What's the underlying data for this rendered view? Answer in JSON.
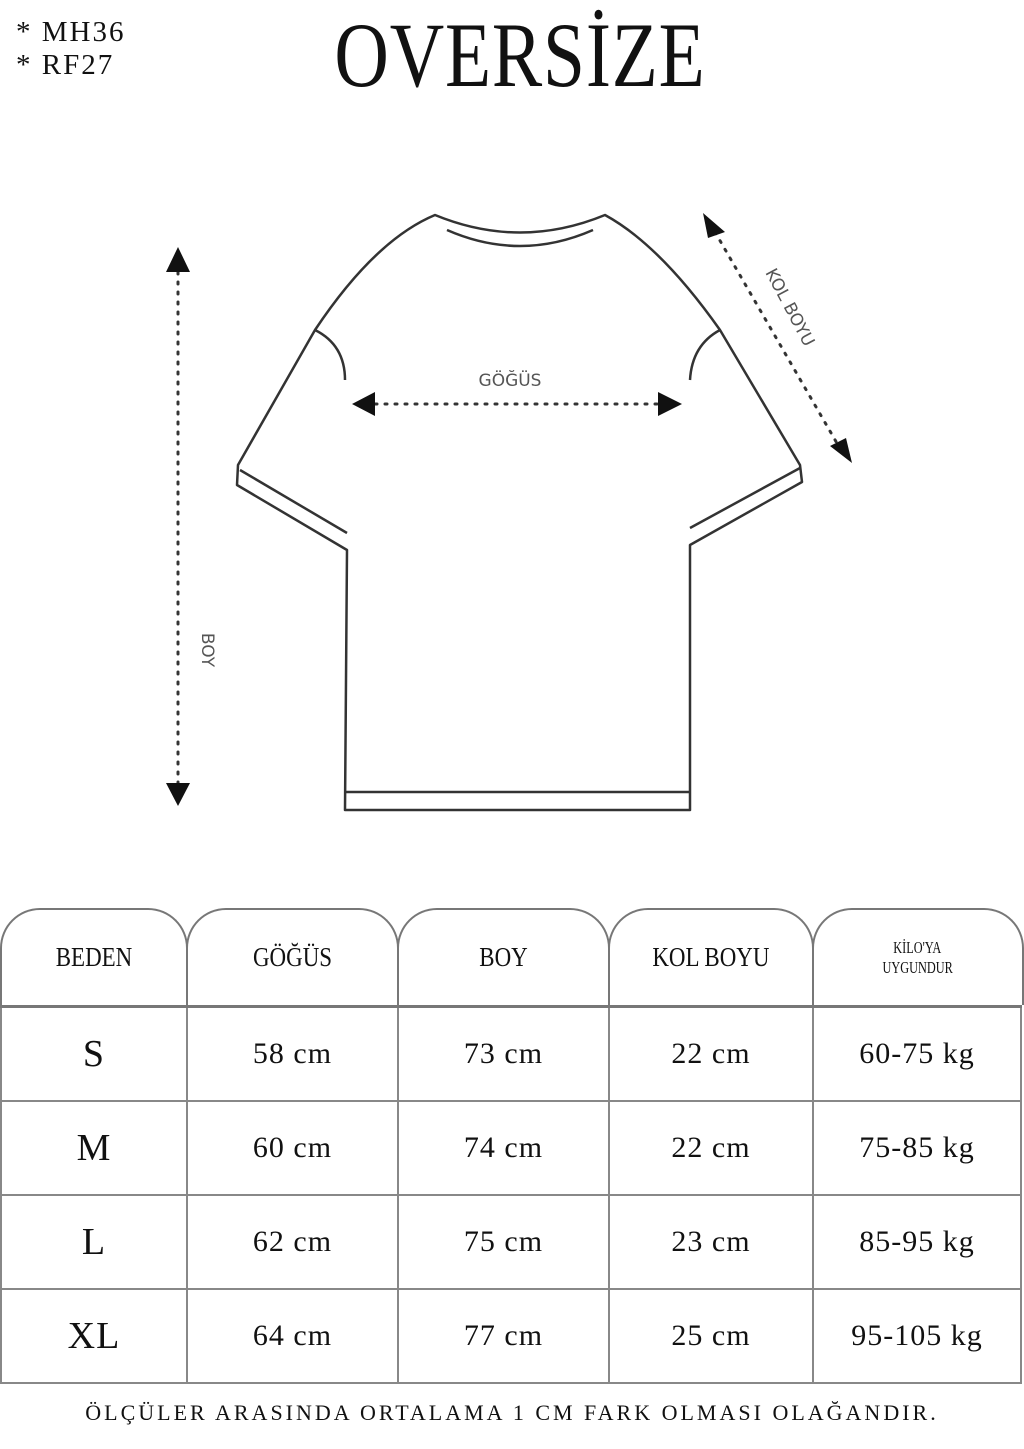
{
  "codes": [
    "* MH36",
    "* RF27"
  ],
  "title": "OVERSİZE",
  "diagram_labels": {
    "chest": "GÖĞÜS",
    "length": "BOY",
    "sleeve": "KOL BOYU"
  },
  "table": {
    "headers": [
      "BEDEN",
      "GÖĞÜS",
      "BOY",
      "KOL BOYU",
      "KİLO'YA",
      "UYGUNDUR"
    ],
    "rows": [
      [
        "S",
        "58 cm",
        "73 cm",
        "22  cm",
        "60-75 kg"
      ],
      [
        "M",
        "60 cm",
        "74 cm",
        "22 cm",
        "75-85 kg"
      ],
      [
        "L",
        "62 cm",
        "75 cm",
        "23 cm",
        "85-95 kg"
      ],
      [
        "XL",
        "64 cm",
        "77 cm",
        "25 cm",
        "95-105 kg"
      ]
    ]
  },
  "footer": "ÖLÇÜLER ARASINDA ORTALAMA 1 CM FARK OLMASI OLAĞANDIR."
}
